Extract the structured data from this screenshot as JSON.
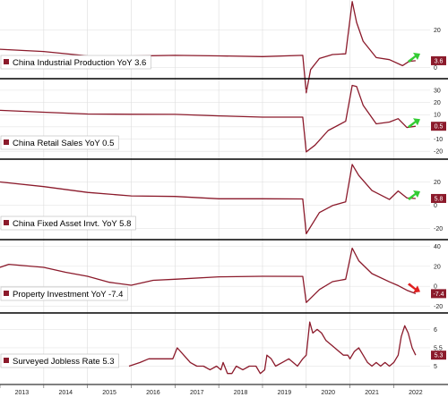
{
  "colors": {
    "line": "#8b1a2b",
    "up_arrow": "#33cc33",
    "down_arrow": "#e02020",
    "grid": "#dddddd",
    "divider": "#000000"
  },
  "x_labels": [
    "2013",
    "2014",
    "2015",
    "2016",
    "2017",
    "2018",
    "2019",
    "2020",
    "2021",
    "2022"
  ],
  "chart_data": [
    {
      "type": "line",
      "title": "China Industrial Production YoY 3.6",
      "ylim": [
        -5,
        35
      ],
      "yticks": [
        0,
        20
      ],
      "last_label": "3.6",
      "arrow": "up",
      "series": [
        {
          "x": [
            2013.0,
            2014.0,
            2015.0,
            2016.0,
            2017.0,
            2018.0,
            2019.0,
            2019.92,
            2020.0,
            2020.1,
            2020.3,
            2020.6,
            2020.9,
            2021.05,
            2021.15,
            2021.3,
            2021.6,
            2021.9,
            2022.2,
            2022.35,
            2022.5
          ],
          "y": [
            9.7,
            8.5,
            6.2,
            6.1,
            6.5,
            6.2,
            5.8,
            6.5,
            -13.5,
            -1.1,
            4.8,
            6.9,
            7.3,
            35.1,
            24.0,
            14.0,
            5.3,
            4.2,
            1.0,
            3.3,
            3.6
          ]
        }
      ]
    },
    {
      "type": "line",
      "title": "China Retail Sales YoY 0.5",
      "ylim": [
        -25,
        38
      ],
      "yticks": [
        30,
        20,
        10,
        0,
        -10,
        -20
      ],
      "last_label": "0.5",
      "arrow": "up",
      "series": [
        {
          "x": [
            2013.0,
            2014.0,
            2015.0,
            2016.0,
            2017.0,
            2018.0,
            2019.0,
            2019.92,
            2020.0,
            2020.2,
            2020.5,
            2020.9,
            2021.05,
            2021.15,
            2021.3,
            2021.6,
            2021.9,
            2022.1,
            2022.3,
            2022.5
          ],
          "y": [
            13.5,
            12.0,
            10.5,
            10.3,
            10.2,
            9.0,
            8.0,
            8.0,
            -20.5,
            -15.0,
            -3.0,
            4.6,
            34.0,
            33.0,
            17.7,
            2.5,
            3.9,
            6.7,
            -0.5,
            0.5
          ]
        }
      ]
    },
    {
      "type": "line",
      "title": "China Fixed Asset Invt. YoY 5.8",
      "ylim": [
        -28,
        38
      ],
      "yticks": [
        20,
        0,
        -20
      ],
      "last_label": "5.8",
      "arrow": "up",
      "series": [
        {
          "x": [
            2013.0,
            2014.0,
            2015.0,
            2016.0,
            2017.0,
            2018.0,
            2019.0,
            2019.92,
            2020.0,
            2020.3,
            2020.6,
            2020.9,
            2021.05,
            2021.2,
            2021.5,
            2021.9,
            2022.1,
            2022.3,
            2022.5
          ],
          "y": [
            20.0,
            16.0,
            11.0,
            8.0,
            7.5,
            5.5,
            5.5,
            5.4,
            -24.5,
            -6.3,
            -0.3,
            2.9,
            35.0,
            25.6,
            12.6,
            4.9,
            12.2,
            6.2,
            5.8
          ]
        }
      ]
    },
    {
      "type": "line",
      "title": "Property Investment YoY -7.4",
      "ylim": [
        -25,
        45
      ],
      "yticks": [
        40,
        20,
        0,
        -20
      ],
      "last_label": "-7.4",
      "arrow": "down",
      "series": [
        {
          "x": [
            2013.0,
            2013.2,
            2014.0,
            2014.5,
            2015.0,
            2015.5,
            2016.0,
            2016.5,
            2017.0,
            2018.0,
            2019.0,
            2019.92,
            2020.0,
            2020.3,
            2020.6,
            2020.9,
            2021.05,
            2021.2,
            2021.5,
            2021.9,
            2022.1,
            2022.3,
            2022.5
          ],
          "y": [
            19.0,
            22.0,
            19.0,
            14.0,
            10.0,
            4.0,
            1.0,
            6.0,
            7.0,
            9.5,
            10.0,
            9.9,
            -16.3,
            -3.3,
            4.6,
            7.0,
            38.3,
            25.6,
            12.7,
            4.4,
            0.7,
            -4.0,
            -7.4
          ]
        }
      ]
    },
    {
      "type": "line",
      "title": "Surveyed Jobless Rate 5.3",
      "ylim": [
        4.55,
        6.4
      ],
      "yticks": [
        6.0,
        5.5,
        5.0
      ],
      "last_label": "5.3",
      "arrow": "none",
      "series": [
        {
          "x": [
            2015.95,
            2016.2,
            2016.4,
            2016.6,
            2016.75,
            2016.95,
            2017.05,
            2017.2,
            2017.35,
            2017.5,
            2017.65,
            2017.8,
            2017.95,
            2018.05,
            2018.1,
            2018.2,
            2018.3,
            2018.4,
            2018.55,
            2018.7,
            2018.85,
            2018.95,
            2019.05,
            2019.1,
            2019.2,
            2019.3,
            2019.45,
            2019.6,
            2019.7,
            2019.8,
            2019.92,
            2020.0,
            2020.08,
            2020.15,
            2020.25,
            2020.35,
            2020.45,
            2020.55,
            2020.65,
            2020.75,
            2020.85,
            2020.95,
            2021.0,
            2021.1,
            2021.2,
            2021.3,
            2021.4,
            2021.5,
            2021.6,
            2021.7,
            2021.8,
            2021.9,
            2022.0,
            2022.1,
            2022.17,
            2022.25,
            2022.33,
            2022.42,
            2022.5
          ],
          "y": [
            5.0,
            5.1,
            5.2,
            5.2,
            5.2,
            5.2,
            5.5,
            5.3,
            5.1,
            5.0,
            5.0,
            4.9,
            5.0,
            4.9,
            5.1,
            4.8,
            4.8,
            5.0,
            4.9,
            5.0,
            5.0,
            4.8,
            4.9,
            5.3,
            5.2,
            5.0,
            5.1,
            5.2,
            5.1,
            5.0,
            5.2,
            5.3,
            6.2,
            5.9,
            6.0,
            5.9,
            5.7,
            5.6,
            5.5,
            5.4,
            5.3,
            5.3,
            5.2,
            5.4,
            5.5,
            5.3,
            5.1,
            5.0,
            5.1,
            5.0,
            5.1,
            5.0,
            5.1,
            5.3,
            5.8,
            6.1,
            5.9,
            5.5,
            5.3
          ]
        }
      ]
    }
  ]
}
